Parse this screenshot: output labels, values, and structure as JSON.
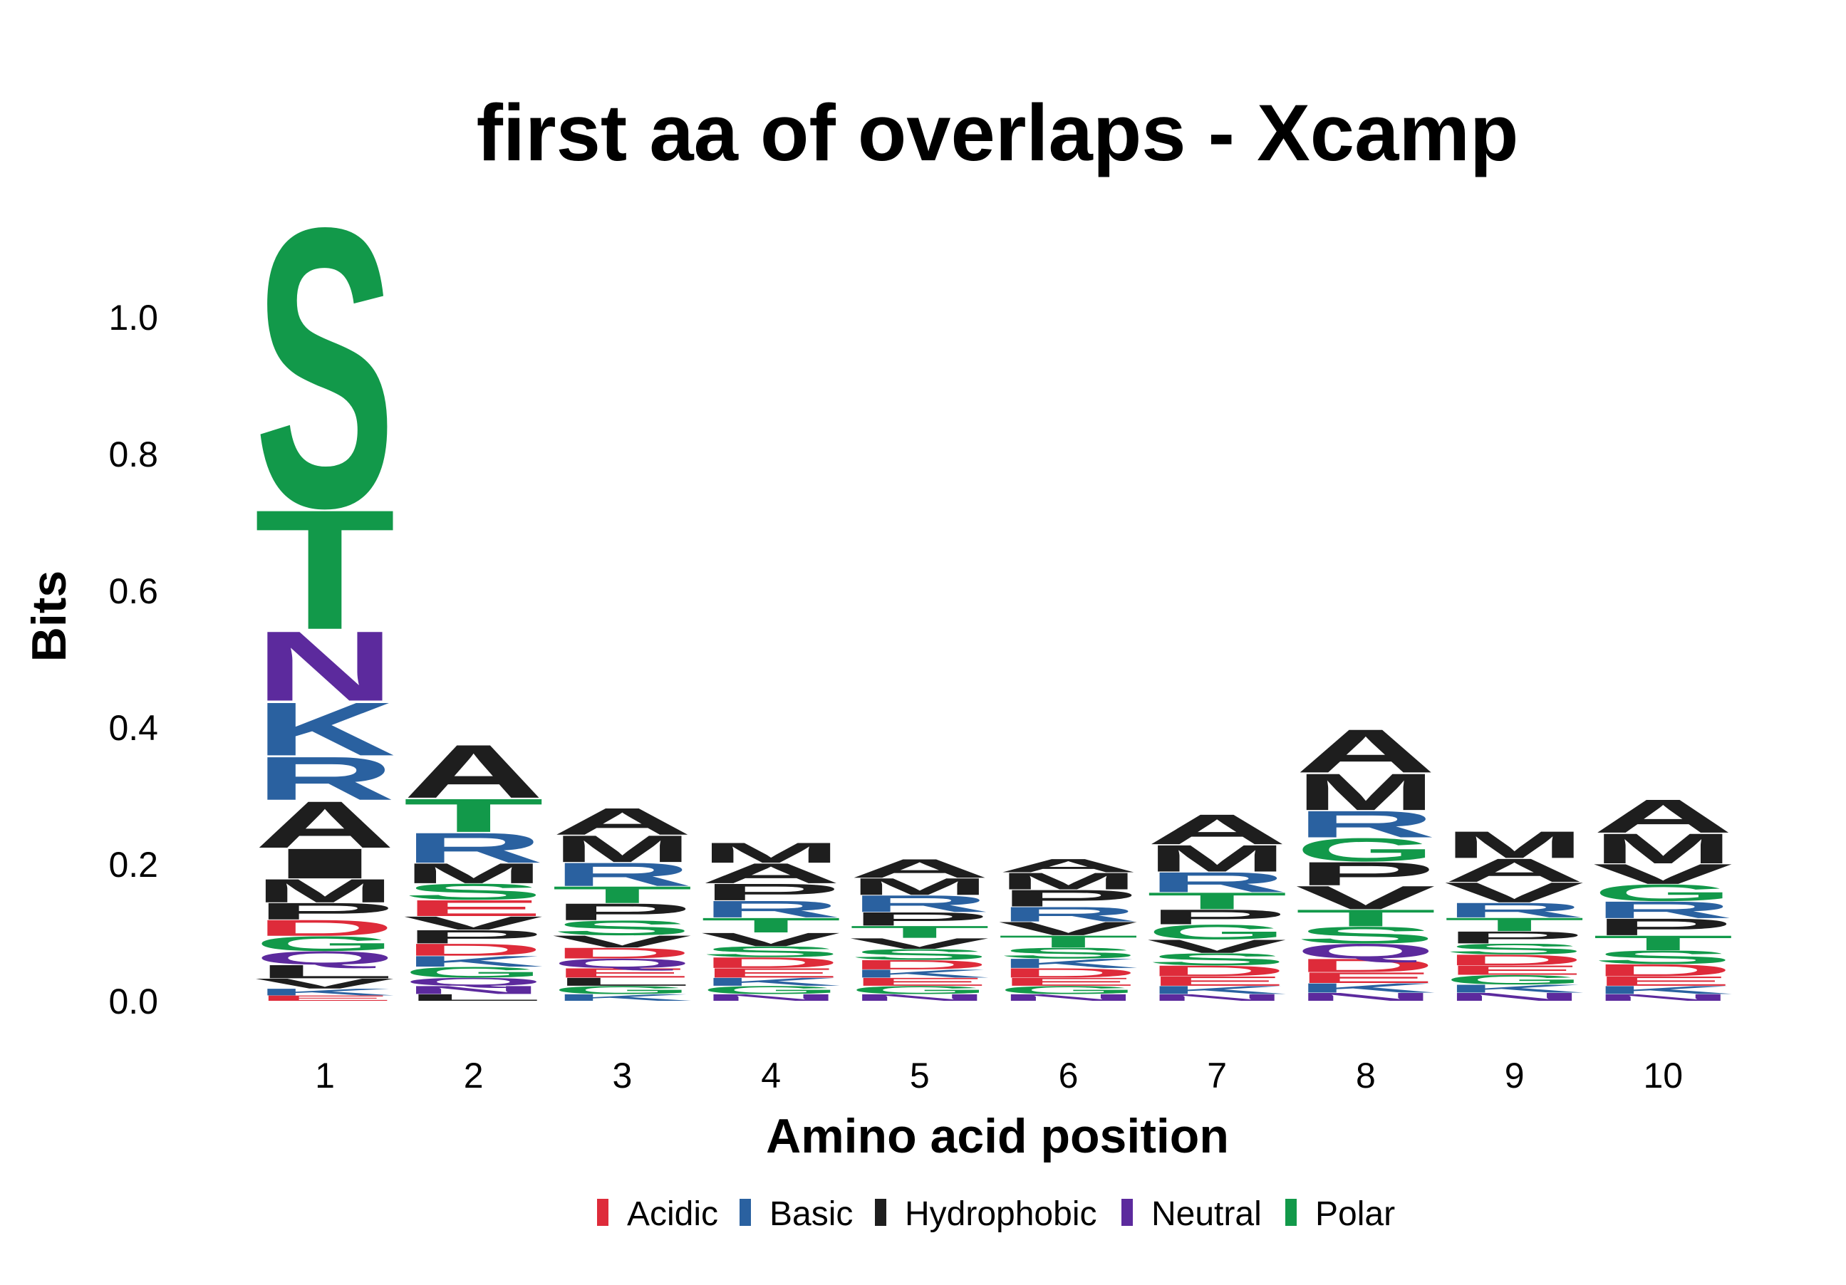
{
  "chart_data": {
    "type": "sequence_logo",
    "title": "first aa of overlaps - Xcamp",
    "xlabel": "Amino acid position",
    "ylabel": "Bits",
    "ylim": [
      0,
      1.1
    ],
    "yticks": [
      "0.0",
      "0.2",
      "0.4",
      "0.6",
      "0.8",
      "1.0"
    ],
    "ytick_values": [
      0,
      0.2,
      0.4,
      0.6,
      0.8,
      1.0
    ],
    "grid": false,
    "legend_position": "bottom",
    "colors": {
      "Acidic": "#de2b3a",
      "Basic": "#2a61a0",
      "Hydrophobic": "#1e1e1e",
      "Neutral": "#5c2a9d",
      "Polar": "#12994a"
    },
    "legend": [
      "Acidic",
      "Basic",
      "Hydrophobic",
      "Neutral",
      "Polar"
    ],
    "positions": [
      {
        "label": "1",
        "letters": [
          {
            "aa": "E",
            "class": "Acidic",
            "bits": 0.008
          },
          {
            "aa": "K",
            "class": "Basic",
            "bits": 0.01
          },
          {
            "aa": "V",
            "class": "Hydrophobic",
            "bits": 0.015
          },
          {
            "aa": "L",
            "class": "Hydrophobic",
            "bits": 0.02
          },
          {
            "aa": "Q",
            "class": "Neutral",
            "bits": 0.02
          },
          {
            "aa": "G",
            "class": "Polar",
            "bits": 0.022
          },
          {
            "aa": "D",
            "class": "Acidic",
            "bits": 0.024
          },
          {
            "aa": "P",
            "class": "Hydrophobic",
            "bits": 0.025
          },
          {
            "aa": "M",
            "class": "Hydrophobic",
            "bits": 0.035
          },
          {
            "aa": "I",
            "class": "Hydrophobic",
            "bits": 0.045
          },
          {
            "aa": "A",
            "class": "Hydrophobic",
            "bits": 0.07
          },
          {
            "aa": "R",
            "class": "Basic",
            "bits": 0.065
          },
          {
            "aa": "K",
            "class": "Basic",
            "bits": 0.08
          },
          {
            "aa": "N",
            "class": "Neutral",
            "bits": 0.105
          },
          {
            "aa": "T",
            "class": "Polar",
            "bits": 0.18
          },
          {
            "aa": "S",
            "class": "Polar",
            "bits": 0.42
          }
        ]
      },
      {
        "label": "2",
        "letters": [
          {
            "aa": "L",
            "class": "Hydrophobic",
            "bits": 0.01
          },
          {
            "aa": "N",
            "class": "Neutral",
            "bits": 0.012
          },
          {
            "aa": "Q",
            "class": "Neutral",
            "bits": 0.012
          },
          {
            "aa": "G",
            "class": "Polar",
            "bits": 0.016
          },
          {
            "aa": "K",
            "class": "Basic",
            "bits": 0.016
          },
          {
            "aa": "D",
            "class": "Acidic",
            "bits": 0.018
          },
          {
            "aa": "P",
            "class": "Hydrophobic",
            "bits": 0.02
          },
          {
            "aa": "V",
            "class": "Hydrophobic",
            "bits": 0.02
          },
          {
            "aa": "E",
            "class": "Acidic",
            "bits": 0.024
          },
          {
            "aa": "S",
            "class": "Polar",
            "bits": 0.024
          },
          {
            "aa": "M",
            "class": "Hydrophobic",
            "bits": 0.03
          },
          {
            "aa": "R",
            "class": "Basic",
            "bits": 0.045
          },
          {
            "aa": "T",
            "class": "Polar",
            "bits": 0.05
          },
          {
            "aa": "A",
            "class": "Hydrophobic",
            "bits": 0.08
          }
        ]
      },
      {
        "label": "3",
        "letters": [
          {
            "aa": "K",
            "class": "Basic",
            "bits": 0.01
          },
          {
            "aa": "G",
            "class": "Polar",
            "bits": 0.012
          },
          {
            "aa": "L",
            "class": "Hydrophobic",
            "bits": 0.012
          },
          {
            "aa": "E",
            "class": "Acidic",
            "bits": 0.014
          },
          {
            "aa": "Q",
            "class": "Neutral",
            "bits": 0.014
          },
          {
            "aa": "D",
            "class": "Acidic",
            "bits": 0.016
          },
          {
            "aa": "V",
            "class": "Hydrophobic",
            "bits": 0.018
          },
          {
            "aa": "S",
            "class": "Polar",
            "bits": 0.022
          },
          {
            "aa": "P",
            "class": "Hydrophobic",
            "bits": 0.025
          },
          {
            "aa": "T",
            "class": "Polar",
            "bits": 0.025
          },
          {
            "aa": "R",
            "class": "Basic",
            "bits": 0.035
          },
          {
            "aa": "M",
            "class": "Hydrophobic",
            "bits": 0.04
          },
          {
            "aa": "A",
            "class": "Hydrophobic",
            "bits": 0.04
          }
        ]
      },
      {
        "label": "4",
        "letters": [
          {
            "aa": "N",
            "class": "Neutral",
            "bits": 0.01
          },
          {
            "aa": "G",
            "class": "Polar",
            "bits": 0.012
          },
          {
            "aa": "K",
            "class": "Basic",
            "bits": 0.012
          },
          {
            "aa": "E",
            "class": "Acidic",
            "bits": 0.014
          },
          {
            "aa": "D",
            "class": "Acidic",
            "bits": 0.016
          },
          {
            "aa": "S",
            "class": "Polar",
            "bits": 0.016
          },
          {
            "aa": "V",
            "class": "Hydrophobic",
            "bits": 0.02
          },
          {
            "aa": "T",
            "class": "Polar",
            "bits": 0.022
          },
          {
            "aa": "R",
            "class": "Basic",
            "bits": 0.025
          },
          {
            "aa": "P",
            "class": "Hydrophobic",
            "bits": 0.025
          },
          {
            "aa": "A",
            "class": "Hydrophobic",
            "bits": 0.03
          },
          {
            "aa": "M",
            "class": "Hydrophobic",
            "bits": 0.03
          }
        ]
      },
      {
        "label": "5",
        "letters": [
          {
            "aa": "N",
            "class": "Neutral",
            "bits": 0.01
          },
          {
            "aa": "G",
            "class": "Polar",
            "bits": 0.012
          },
          {
            "aa": "E",
            "class": "Acidic",
            "bits": 0.012
          },
          {
            "aa": "K",
            "class": "Basic",
            "bits": 0.012
          },
          {
            "aa": "D",
            "class": "Acidic",
            "bits": 0.014
          },
          {
            "aa": "S",
            "class": "Polar",
            "bits": 0.016
          },
          {
            "aa": "V",
            "class": "Hydrophobic",
            "bits": 0.016
          },
          {
            "aa": "T",
            "class": "Polar",
            "bits": 0.018
          },
          {
            "aa": "P",
            "class": "Hydrophobic",
            "bits": 0.02
          },
          {
            "aa": "R",
            "class": "Basic",
            "bits": 0.025
          },
          {
            "aa": "M",
            "class": "Hydrophobic",
            "bits": 0.025
          },
          {
            "aa": "A",
            "class": "Hydrophobic",
            "bits": 0.028
          }
        ]
      },
      {
        "label": "6",
        "letters": [
          {
            "aa": "N",
            "class": "Neutral",
            "bits": 0.01
          },
          {
            "aa": "G",
            "class": "Polar",
            "bits": 0.012
          },
          {
            "aa": "E",
            "class": "Acidic",
            "bits": 0.012
          },
          {
            "aa": "D",
            "class": "Acidic",
            "bits": 0.014
          },
          {
            "aa": "K",
            "class": "Basic",
            "bits": 0.014
          },
          {
            "aa": "S",
            "class": "Polar",
            "bits": 0.016
          },
          {
            "aa": "T",
            "class": "Polar",
            "bits": 0.018
          },
          {
            "aa": "V",
            "class": "Hydrophobic",
            "bits": 0.02
          },
          {
            "aa": "R",
            "class": "Basic",
            "bits": 0.022
          },
          {
            "aa": "P",
            "class": "Hydrophobic",
            "bits": 0.025
          },
          {
            "aa": "M",
            "class": "Hydrophobic",
            "bits": 0.025
          },
          {
            "aa": "A",
            "class": "Hydrophobic",
            "bits": 0.02
          }
        ]
      },
      {
        "label": "7",
        "letters": [
          {
            "aa": "N",
            "class": "Neutral",
            "bits": 0.01
          },
          {
            "aa": "K",
            "class": "Basic",
            "bits": 0.012
          },
          {
            "aa": "E",
            "class": "Acidic",
            "bits": 0.014
          },
          {
            "aa": "D",
            "class": "Acidic",
            "bits": 0.016
          },
          {
            "aa": "S",
            "class": "Polar",
            "bits": 0.018
          },
          {
            "aa": "V",
            "class": "Hydrophobic",
            "bits": 0.02
          },
          {
            "aa": "G",
            "class": "Polar",
            "bits": 0.022
          },
          {
            "aa": "P",
            "class": "Hydrophobic",
            "bits": 0.022
          },
          {
            "aa": "T",
            "class": "Polar",
            "bits": 0.025
          },
          {
            "aa": "R",
            "class": "Basic",
            "bits": 0.03
          },
          {
            "aa": "M",
            "class": "Hydrophobic",
            "bits": 0.04
          },
          {
            "aa": "A",
            "class": "Hydrophobic",
            "bits": 0.045
          }
        ]
      },
      {
        "label": "8",
        "letters": [
          {
            "aa": "N",
            "class": "Neutral",
            "bits": 0.012
          },
          {
            "aa": "K",
            "class": "Basic",
            "bits": 0.014
          },
          {
            "aa": "E",
            "class": "Acidic",
            "bits": 0.016
          },
          {
            "aa": "D",
            "class": "Acidic",
            "bits": 0.02
          },
          {
            "aa": "Q",
            "class": "Neutral",
            "bits": 0.022
          },
          {
            "aa": "S",
            "class": "Polar",
            "bits": 0.025
          },
          {
            "aa": "T",
            "class": "Polar",
            "bits": 0.025
          },
          {
            "aa": "V",
            "class": "Hydrophobic",
            "bits": 0.035
          },
          {
            "aa": "P",
            "class": "Hydrophobic",
            "bits": 0.035
          },
          {
            "aa": "G",
            "class": "Polar",
            "bits": 0.035
          },
          {
            "aa": "R",
            "class": "Basic",
            "bits": 0.04
          },
          {
            "aa": "M",
            "class": "Hydrophobic",
            "bits": 0.055
          },
          {
            "aa": "A",
            "class": "Hydrophobic",
            "bits": 0.065
          }
        ]
      },
      {
        "label": "9",
        "letters": [
          {
            "aa": "N",
            "class": "Neutral",
            "bits": 0.012
          },
          {
            "aa": "K",
            "class": "Basic",
            "bits": 0.012
          },
          {
            "aa": "G",
            "class": "Polar",
            "bits": 0.014
          },
          {
            "aa": "E",
            "class": "Acidic",
            "bits": 0.014
          },
          {
            "aa": "D",
            "class": "Acidic",
            "bits": 0.016
          },
          {
            "aa": "S",
            "class": "Polar",
            "bits": 0.016
          },
          {
            "aa": "P",
            "class": "Hydrophobic",
            "bits": 0.018
          },
          {
            "aa": "T",
            "class": "Polar",
            "bits": 0.02
          },
          {
            "aa": "R",
            "class": "Basic",
            "bits": 0.022
          },
          {
            "aa": "V",
            "class": "Hydrophobic",
            "bits": 0.03
          },
          {
            "aa": "A",
            "class": "Hydrophobic",
            "bits": 0.035
          },
          {
            "aa": "M",
            "class": "Hydrophobic",
            "bits": 0.04
          }
        ]
      },
      {
        "label": "10",
        "letters": [
          {
            "aa": "N",
            "class": "Neutral",
            "bits": 0.01
          },
          {
            "aa": "K",
            "class": "Basic",
            "bits": 0.012
          },
          {
            "aa": "E",
            "class": "Acidic",
            "bits": 0.014
          },
          {
            "aa": "D",
            "class": "Acidic",
            "bits": 0.018
          },
          {
            "aa": "S",
            "class": "Polar",
            "bits": 0.02
          },
          {
            "aa": "T",
            "class": "Polar",
            "bits": 0.022
          },
          {
            "aa": "P",
            "class": "Hydrophobic",
            "bits": 0.025
          },
          {
            "aa": "R",
            "class": "Basic",
            "bits": 0.025
          },
          {
            "aa": "G",
            "class": "Polar",
            "bits": 0.025
          },
          {
            "aa": "V",
            "class": "Hydrophobic",
            "bits": 0.03
          },
          {
            "aa": "M",
            "class": "Hydrophobic",
            "bits": 0.045
          },
          {
            "aa": "A",
            "class": "Hydrophobic",
            "bits": 0.05
          }
        ]
      }
    ]
  }
}
